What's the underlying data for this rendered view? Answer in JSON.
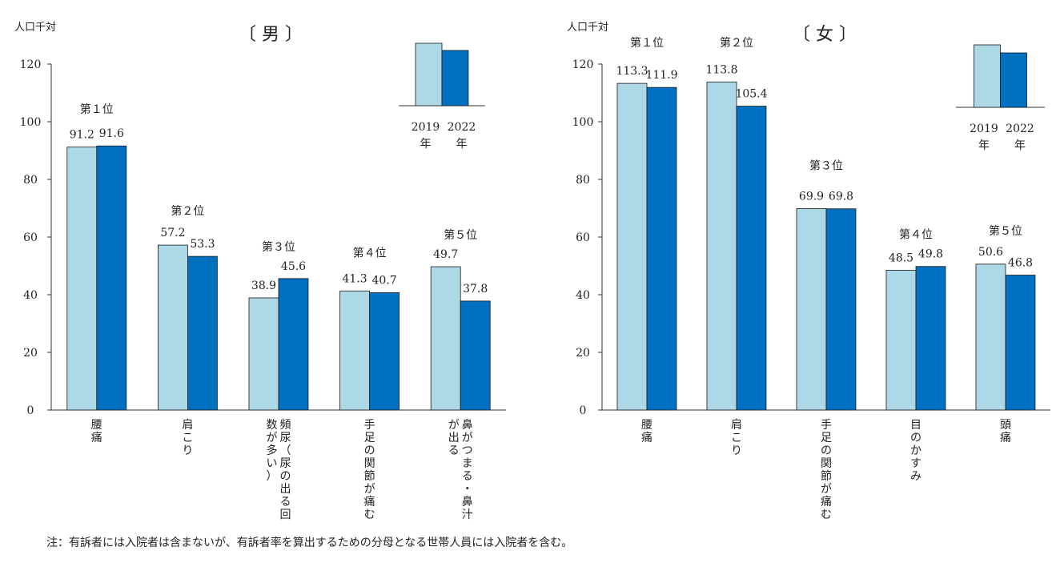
{
  "note": "注：有訴者には入院者は含まないが、有訴者率を算出するための分母となる世帯人員には入院者を含む。",
  "colors": {
    "y2019": "#add8e6",
    "y2022": "#0070c0",
    "stroke": "#1a1a1a"
  },
  "chart_data": [
    {
      "type": "bar",
      "title": "〔 男 〕",
      "ylabel": "人口千対",
      "ylim": [
        0,
        120
      ],
      "yticks": [
        0,
        20,
        40,
        60,
        80,
        100,
        120
      ],
      "grid": false,
      "legend_position": "top-right",
      "series_labels": [
        [
          "2019",
          "年"
        ],
        [
          "2022",
          "年"
        ]
      ],
      "series": [
        {
          "values": [
            91.2,
            57.2,
            38.9,
            41.3,
            49.7
          ]
        },
        {
          "values": [
            91.6,
            53.3,
            45.6,
            40.7,
            37.8
          ]
        }
      ],
      "ranks": [
        "第１位",
        "第２位",
        "第３位",
        "第４位",
        "第５位"
      ],
      "value_labels": [
        [
          "91.2",
          "91.6"
        ],
        [
          "57.2",
          "53.3"
        ],
        [
          "38.9",
          "45.6"
        ],
        [
          "41.3",
          "40.7"
        ],
        [
          "49.7",
          "37.8"
        ]
      ],
      "categories": [
        [
          "腰",
          "痛"
        ],
        [
          "肩",
          "こ",
          "り"
        ],
        [
          "頻",
          "尿",
          "（",
          "尿",
          "の",
          "出",
          "る",
          "回",
          "数",
          "が",
          "多",
          "い",
          "）"
        ],
        [
          "手",
          "足",
          "の",
          "関",
          "節",
          "が",
          "痛",
          "む"
        ],
        [
          "鼻",
          "が",
          "つ",
          "ま",
          "る",
          "・",
          "鼻",
          "汁",
          "が",
          "出",
          "る"
        ]
      ]
    },
    {
      "type": "bar",
      "title": "〔 女 〕",
      "ylabel": "人口千対",
      "ylim": [
        0,
        120
      ],
      "yticks": [
        0,
        20,
        40,
        60,
        80,
        100,
        120
      ],
      "grid": false,
      "legend_position": "top-right",
      "series_labels": [
        [
          "2019",
          "年"
        ],
        [
          "2022",
          "年"
        ]
      ],
      "series": [
        {
          "values": [
            113.3,
            113.8,
            69.9,
            48.5,
            50.6
          ]
        },
        {
          "values": [
            111.9,
            105.4,
            69.8,
            49.8,
            46.8
          ]
        }
      ],
      "ranks": [
        "第１位",
        "第２位",
        "第３位",
        "第４位",
        "第５位"
      ],
      "value_labels": [
        [
          "113.3",
          "111.9"
        ],
        [
          "113.8",
          "105.4"
        ],
        [
          "69.9",
          "69.8"
        ],
        [
          "48.5",
          "49.8"
        ],
        [
          "50.6",
          "46.8"
        ]
      ],
      "categories": [
        [
          "腰",
          "痛"
        ],
        [
          "肩",
          "こ",
          "り"
        ],
        [
          "手",
          "足",
          "の",
          "関",
          "節",
          "が",
          "痛",
          "む"
        ],
        [
          "目",
          "の",
          "か",
          "す",
          "み"
        ],
        [
          "頭",
          "痛"
        ]
      ]
    }
  ]
}
